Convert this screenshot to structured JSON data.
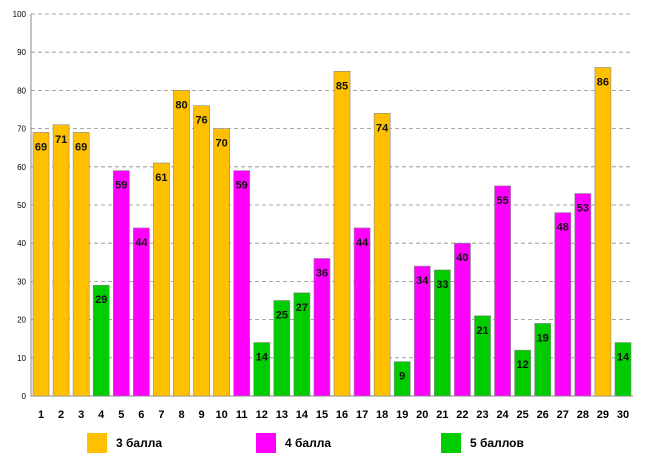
{
  "chart_data": {
    "type": "bar",
    "categories": [
      "1",
      "2",
      "3",
      "4",
      "5",
      "6",
      "7",
      "8",
      "9",
      "10",
      "11",
      "12",
      "13",
      "14",
      "15",
      "16",
      "17",
      "18",
      "19",
      "20",
      "21",
      "22",
      "23",
      "24",
      "25",
      "26",
      "27",
      "28",
      "29",
      "30"
    ],
    "values": [
      69,
      71,
      69,
      29,
      59,
      44,
      61,
      80,
      76,
      70,
      59,
      14,
      25,
      27,
      36,
      85,
      44,
      74,
      9,
      34,
      33,
      40,
      21,
      55,
      12,
      19,
      48,
      53,
      86,
      14
    ],
    "groups": [
      "3",
      "3",
      "3",
      "5",
      "4",
      "4",
      "3",
      "3",
      "3",
      "3",
      "4",
      "5",
      "5",
      "5",
      "4",
      "3",
      "4",
      "3",
      "5",
      "4",
      "5",
      "4",
      "5",
      "4",
      "5",
      "5",
      "4",
      "4",
      "3",
      "5"
    ],
    "ylim": [
      0,
      100
    ],
    "yticks": [
      0,
      10,
      20,
      30,
      40,
      50,
      60,
      70,
      80,
      90,
      100
    ],
    "grid": true,
    "legend_position": "bottom",
    "series": [
      {
        "key": "3",
        "name": "3 балла",
        "color": "#FFC000"
      },
      {
        "key": "4",
        "name": "4 балла",
        "color": "#FF00FF"
      },
      {
        "key": "5",
        "name": "5 баллов",
        "color": "#00CC00"
      }
    ]
  }
}
